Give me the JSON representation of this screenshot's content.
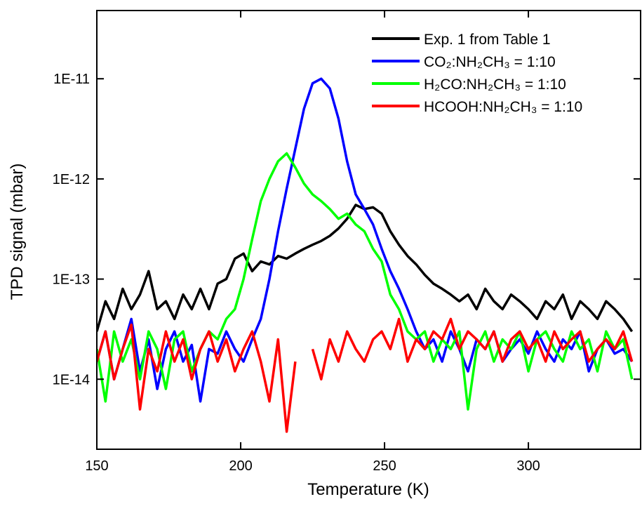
{
  "chart_data": {
    "type": "line",
    "x_label": "Temperature (K)",
    "y_label": "TPD signal (mbar)",
    "log_y": true,
    "legend": "upper right",
    "xlim": [
      150,
      339
    ],
    "xticks": [
      150,
      200,
      250,
      300
    ],
    "ylim": [
      2e-15,
      4.8e-11
    ],
    "yticks": [
      {
        "value": 1e-14,
        "label": "1E-14"
      },
      {
        "value": 1e-13,
        "label": "1E-13"
      },
      {
        "value": 1e-12,
        "label": "1E-12"
      },
      {
        "value": 1e-11,
        "label": "1E-11"
      }
    ],
    "x": [
      150,
      153,
      156,
      159,
      162,
      165,
      168,
      171,
      174,
      177,
      180,
      183,
      186,
      189,
      192,
      195,
      198,
      201,
      204,
      207,
      210,
      213,
      216,
      219,
      222,
      225,
      228,
      231,
      234,
      237,
      240,
      243,
      246,
      249,
      252,
      255,
      258,
      261,
      264,
      267,
      270,
      273,
      276,
      279,
      282,
      285,
      288,
      291,
      294,
      297,
      300,
      303,
      306,
      309,
      312,
      315,
      318,
      321,
      324,
      327,
      330,
      333,
      336
    ],
    "series": [
      {
        "name": "Exp. 1 from Table 1",
        "color": "#000000",
        "values": [
          3e-14,
          6e-14,
          4e-14,
          8e-14,
          5e-14,
          7e-14,
          1.2e-13,
          5e-14,
          6e-14,
          4e-14,
          7e-14,
          5e-14,
          8e-14,
          5e-14,
          9e-14,
          1e-13,
          1.6e-13,
          1.8e-13,
          1.2e-13,
          1.5e-13,
          1.4e-13,
          1.7e-13,
          1.6e-13,
          1.8e-13,
          2e-13,
          2.2e-13,
          2.4e-13,
          2.7e-13,
          3.2e-13,
          4e-13,
          5.5e-13,
          5e-13,
          5.2e-13,
          4.5e-13,
          3e-13,
          2.2e-13,
          1.7e-13,
          1.4e-13,
          1.1e-13,
          9e-14,
          8e-14,
          7e-14,
          6e-14,
          7e-14,
          5e-14,
          8e-14,
          6e-14,
          5e-14,
          7e-14,
          6e-14,
          5e-14,
          4e-14,
          6e-14,
          5e-14,
          7e-14,
          4e-14,
          6e-14,
          5e-14,
          4e-14,
          6e-14,
          5e-14,
          4e-14,
          3e-14
        ]
      },
      {
        "name": "CO₂:NH₂CH₃ = 1:10",
        "color": "#0000ff",
        "values": [
          1.5e-14,
          3e-14,
          1e-14,
          2e-14,
          4e-14,
          1.2e-14,
          2.5e-14,
          8e-15,
          2e-14,
          3e-14,
          1.5e-14,
          2.2e-14,
          6e-15,
          2e-14,
          1.8e-14,
          3e-14,
          2e-14,
          1.5e-14,
          2.5e-14,
          4e-14,
          1e-13,
          3e-13,
          8e-13,
          2e-12,
          5e-12,
          9e-12,
          1e-11,
          8e-12,
          4e-12,
          1.5e-12,
          7e-13,
          5e-13,
          3.5e-13,
          2e-13,
          1.2e-13,
          8e-14,
          5e-14,
          3e-14,
          2e-14,
          2.5e-14,
          1.5e-14,
          3e-14,
          2e-14,
          1.2e-14,
          2.5e-14,
          2e-14,
          3e-14,
          1.5e-14,
          2e-14,
          2.5e-14,
          1.8e-14,
          3e-14,
          2e-14,
          1.5e-14,
          2.5e-14,
          2e-14,
          3e-14,
          1.2e-14,
          2e-14,
          2.5e-14,
          1.8e-14,
          2e-14,
          1.5e-14
        ]
      },
      {
        "name": "H₂CO:NH₂CH₃ = 1:10",
        "color": "#00ff00",
        "values": [
          2e-14,
          6e-15,
          3e-14,
          1.5e-14,
          2.5e-14,
          1e-14,
          3e-14,
          2e-14,
          8e-15,
          2.5e-14,
          3e-14,
          1.2e-14,
          2e-14,
          3e-14,
          2.5e-14,
          4e-14,
          5e-14,
          1e-13,
          2.5e-13,
          6e-13,
          1e-12,
          1.5e-12,
          1.8e-12,
          1.3e-12,
          9e-13,
          7e-13,
          6e-13,
          5e-13,
          4e-13,
          4.5e-13,
          3.5e-13,
          3e-13,
          2e-13,
          1.5e-13,
          7e-14,
          5e-14,
          3e-14,
          2.5e-14,
          3e-14,
          1.5e-14,
          2.5e-14,
          2e-14,
          3e-14,
          5e-15,
          2e-14,
          3e-14,
          1.5e-14,
          2.5e-14,
          2e-14,
          3e-14,
          1.2e-14,
          2.5e-14,
          3e-14,
          2e-14,
          1.5e-14,
          3e-14,
          2e-14,
          2.5e-14,
          1.2e-14,
          3e-14,
          2e-14,
          2.5e-14,
          1e-14
        ]
      },
      {
        "name": "HCOOH:NH₂CH₃ = 1:10",
        "color": "#ff0000",
        "values": [
          1.5e-14,
          3e-14,
          1e-14,
          2e-14,
          3.5e-14,
          5e-15,
          2e-14,
          1.2e-14,
          3e-14,
          1.5e-14,
          2.5e-14,
          1e-14,
          2e-14,
          3e-14,
          1.5e-14,
          2.5e-14,
          1.2e-14,
          2e-14,
          3e-14,
          1.5e-14,
          6e-15,
          2.5e-14,
          3e-15,
          1.5e-14,
          null,
          2e-14,
          1e-14,
          2.5e-14,
          1.5e-14,
          3e-14,
          2e-14,
          1.5e-14,
          2.5e-14,
          3e-14,
          2e-14,
          4e-14,
          1.5e-14,
          2.5e-14,
          2e-14,
          3e-14,
          2.5e-14,
          4e-14,
          2e-14,
          3e-14,
          2.5e-14,
          2e-14,
          3e-14,
          1.5e-14,
          2.5e-14,
          3e-14,
          2e-14,
          2.5e-14,
          1.5e-14,
          3e-14,
          2e-14,
          2.5e-14,
          3e-14,
          1.5e-14,
          2e-14,
          2.5e-14,
          2e-14,
          3e-14,
          1.5e-14
        ]
      }
    ]
  }
}
